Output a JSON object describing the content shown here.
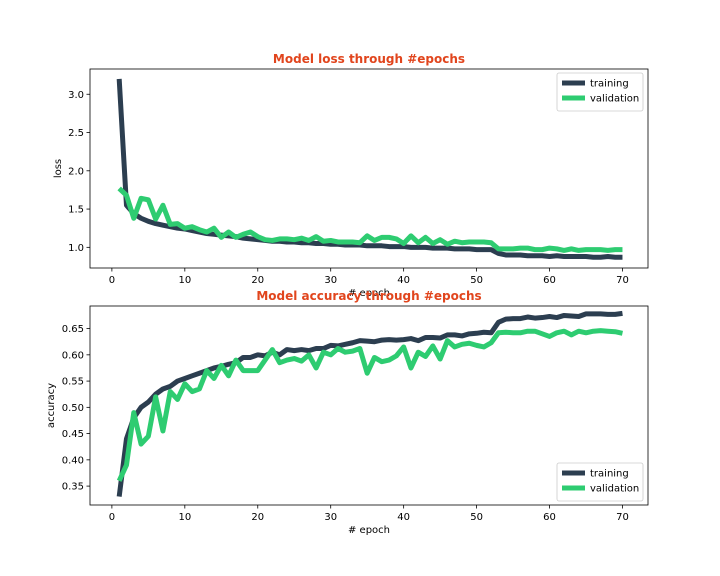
{
  "colors": {
    "title": "#e1451d",
    "training": "#2c3e50",
    "validation": "#2ecc71",
    "axis": "#000000",
    "background": "#ffffff"
  },
  "chart_data": [
    {
      "type": "line",
      "title": "Model loss through #epochs",
      "xlabel": "# epoch",
      "ylabel": "loss",
      "xlim": [
        -3,
        73.5
      ],
      "ylim": [
        0.73,
        3.33
      ],
      "xticks": [
        "0",
        "10",
        "20",
        "30",
        "40",
        "50",
        "60",
        "70"
      ],
      "yticks": [
        "1.0",
        "1.5",
        "2.0",
        "2.5",
        "3.0"
      ],
      "grid": false,
      "legend_position": "top-right",
      "x": [
        1,
        2,
        3,
        4,
        5,
        6,
        7,
        8,
        9,
        10,
        11,
        12,
        13,
        14,
        15,
        16,
        17,
        18,
        19,
        20,
        21,
        22,
        23,
        24,
        25,
        26,
        27,
        28,
        29,
        30,
        31,
        32,
        33,
        34,
        35,
        36,
        37,
        38,
        39,
        40,
        41,
        42,
        43,
        44,
        45,
        46,
        47,
        48,
        49,
        50,
        51,
        52,
        53,
        54,
        55,
        56,
        57,
        58,
        59,
        60,
        61,
        62,
        63,
        64,
        65,
        66,
        67,
        68,
        69,
        70
      ],
      "series": [
        {
          "name": "training",
          "color_key": "training",
          "values": [
            3.2,
            1.55,
            1.44,
            1.38,
            1.34,
            1.31,
            1.29,
            1.27,
            1.25,
            1.24,
            1.22,
            1.2,
            1.18,
            1.17,
            1.16,
            1.15,
            1.14,
            1.12,
            1.11,
            1.1,
            1.09,
            1.08,
            1.08,
            1.07,
            1.07,
            1.06,
            1.06,
            1.05,
            1.05,
            1.04,
            1.04,
            1.03,
            1.03,
            1.03,
            1.02,
            1.02,
            1.02,
            1.01,
            1.01,
            1.01,
            1.0,
            1.0,
            1.0,
            0.99,
            0.99,
            0.99,
            0.98,
            0.98,
            0.98,
            0.97,
            0.97,
            0.97,
            0.92,
            0.9,
            0.9,
            0.9,
            0.89,
            0.89,
            0.89,
            0.88,
            0.89,
            0.88,
            0.88,
            0.88,
            0.88,
            0.87,
            0.87,
            0.88,
            0.87,
            0.87
          ]
        },
        {
          "name": "validation",
          "color_key": "validation",
          "values": [
            1.77,
            1.68,
            1.38,
            1.64,
            1.62,
            1.37,
            1.55,
            1.3,
            1.31,
            1.25,
            1.27,
            1.23,
            1.2,
            1.25,
            1.13,
            1.2,
            1.13,
            1.17,
            1.2,
            1.14,
            1.1,
            1.09,
            1.11,
            1.11,
            1.1,
            1.12,
            1.09,
            1.14,
            1.08,
            1.09,
            1.07,
            1.07,
            1.07,
            1.06,
            1.15,
            1.09,
            1.13,
            1.13,
            1.11,
            1.05,
            1.15,
            1.06,
            1.13,
            1.05,
            1.1,
            1.04,
            1.08,
            1.06,
            1.07,
            1.07,
            1.07,
            1.06,
            0.98,
            0.98,
            0.98,
            0.99,
            0.99,
            0.97,
            0.97,
            0.99,
            0.98,
            0.96,
            0.98,
            0.96,
            0.97,
            0.97,
            0.97,
            0.96,
            0.97,
            0.97
          ]
        }
      ]
    },
    {
      "type": "line",
      "title": "Model accuracy through #epochs",
      "xlabel": "# epoch",
      "ylabel": "accuracy",
      "xlim": [
        -3,
        73.5
      ],
      "ylim": [
        0.314,
        0.693
      ],
      "xticks": [
        "0",
        "10",
        "20",
        "30",
        "40",
        "50",
        "60",
        "70"
      ],
      "yticks": [
        "0.35",
        "0.40",
        "0.45",
        "0.50",
        "0.55",
        "0.60",
        "0.65"
      ],
      "grid": false,
      "legend_position": "bottom-right",
      "x": [
        1,
        2,
        3,
        4,
        5,
        6,
        7,
        8,
        9,
        10,
        11,
        12,
        13,
        14,
        15,
        16,
        17,
        18,
        19,
        20,
        21,
        22,
        23,
        24,
        25,
        26,
        27,
        28,
        29,
        30,
        31,
        32,
        33,
        34,
        35,
        36,
        37,
        38,
        39,
        40,
        41,
        42,
        43,
        44,
        45,
        46,
        47,
        48,
        49,
        50,
        51,
        52,
        53,
        54,
        55,
        56,
        57,
        58,
        59,
        60,
        61,
        62,
        63,
        64,
        65,
        66,
        67,
        68,
        69,
        70
      ],
      "series": [
        {
          "name": "training",
          "color_key": "training",
          "values": [
            0.33,
            0.44,
            0.48,
            0.5,
            0.51,
            0.525,
            0.535,
            0.54,
            0.55,
            0.555,
            0.56,
            0.565,
            0.57,
            0.575,
            0.578,
            0.582,
            0.585,
            0.595,
            0.595,
            0.6,
            0.598,
            0.605,
            0.6,
            0.61,
            0.608,
            0.61,
            0.608,
            0.612,
            0.612,
            0.618,
            0.617,
            0.62,
            0.623,
            0.627,
            0.626,
            0.625,
            0.628,
            0.629,
            0.628,
            0.629,
            0.631,
            0.627,
            0.633,
            0.633,
            0.632,
            0.638,
            0.638,
            0.636,
            0.64,
            0.641,
            0.643,
            0.642,
            0.662,
            0.668,
            0.669,
            0.669,
            0.672,
            0.67,
            0.671,
            0.673,
            0.671,
            0.675,
            0.674,
            0.673,
            0.678,
            0.678,
            0.678,
            0.677,
            0.677,
            0.679
          ]
        },
        {
          "name": "validation",
          "color_key": "validation",
          "values": [
            0.36,
            0.39,
            0.49,
            0.43,
            0.445,
            0.52,
            0.455,
            0.53,
            0.515,
            0.545,
            0.53,
            0.535,
            0.57,
            0.555,
            0.58,
            0.56,
            0.59,
            0.57,
            0.57,
            0.57,
            0.59,
            0.61,
            0.585,
            0.59,
            0.593,
            0.588,
            0.6,
            0.575,
            0.605,
            0.6,
            0.612,
            0.605,
            0.607,
            0.612,
            0.565,
            0.595,
            0.587,
            0.59,
            0.598,
            0.615,
            0.575,
            0.605,
            0.597,
            0.617,
            0.592,
            0.627,
            0.615,
            0.62,
            0.622,
            0.618,
            0.615,
            0.623,
            0.642,
            0.643,
            0.642,
            0.642,
            0.645,
            0.645,
            0.64,
            0.635,
            0.642,
            0.645,
            0.638,
            0.645,
            0.642,
            0.645,
            0.646,
            0.645,
            0.644,
            0.641
          ]
        }
      ]
    }
  ]
}
